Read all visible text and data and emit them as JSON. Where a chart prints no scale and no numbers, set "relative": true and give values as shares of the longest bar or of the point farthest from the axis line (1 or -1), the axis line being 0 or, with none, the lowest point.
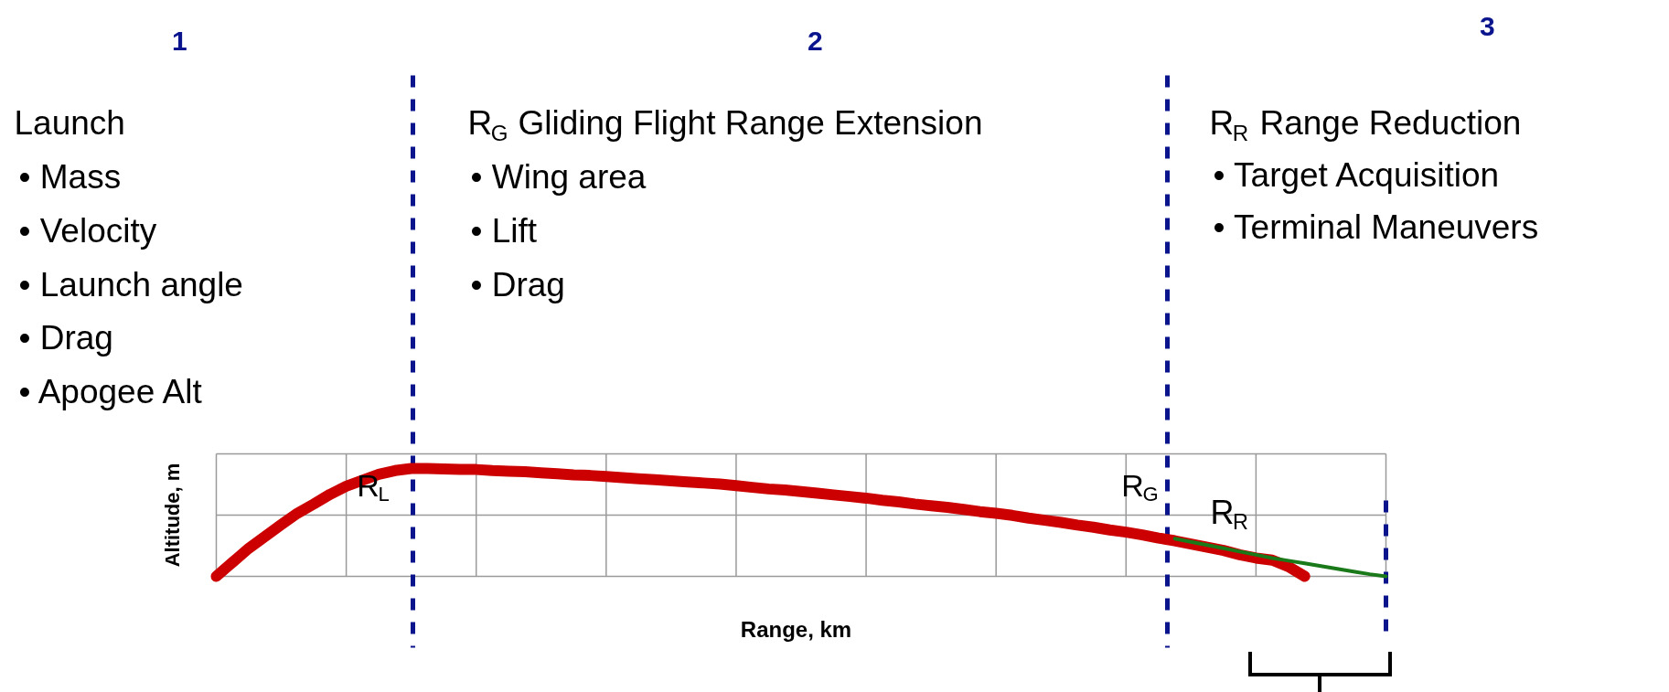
{
  "chart_data": {
    "type": "line",
    "relative": true,
    "xlabel": "Range, km",
    "ylabel": "Altitude, m",
    "categories": [
      null,
      null,
      null,
      null,
      null,
      null,
      null,
      null,
      null,
      null,
      null,
      null,
      null,
      null,
      null,
      null,
      null,
      null,
      null,
      null,
      null,
      null,
      null,
      null,
      null,
      null,
      null,
      null,
      null,
      null,
      null,
      null,
      null,
      null,
      null,
      null,
      null,
      null,
      null,
      null,
      null,
      null,
      null,
      null,
      null,
      null,
      null,
      null,
      null,
      null,
      null,
      null,
      null,
      null,
      null,
      null,
      null,
      null,
      null,
      null,
      null,
      null,
      null,
      null,
      null,
      null,
      null,
      null,
      null,
      null,
      null,
      null,
      null
    ],
    "grid": true,
    "line_style": "solid",
    "series": [
      {
        "color": "#cc0000",
        "values": [
          0,
          0.13,
          0.26,
          0.37,
          0.48,
          0.585,
          0.67,
          0.76,
          0.835,
          0.89,
          0.945,
          0.98,
          1.0,
          1.0,
          0.995,
          0.99,
          0.99,
          0.98,
          0.975,
          0.97,
          0.96,
          0.95,
          0.94,
          0.935,
          0.925,
          0.915,
          0.905,
          0.895,
          0.885,
          0.875,
          0.865,
          0.855,
          0.84,
          0.825,
          0.81,
          0.8,
          0.785,
          0.77,
          0.755,
          0.74,
          0.725,
          0.705,
          0.69,
          0.67,
          0.655,
          0.64,
          0.62,
          0.6,
          0.585,
          0.565,
          0.54,
          0.52,
          0.5,
          0.475,
          0.455,
          0.43,
          0.41,
          0.385,
          0.355,
          0.33,
          0.3,
          0.27,
          0.24,
          0.2,
          0.17,
          0.15,
          0.09,
          0,
          null,
          null,
          null,
          null,
          null
        ]
      },
      {
        "color": "#1a7a1a",
        "values": [
          null,
          null,
          null,
          null,
          null,
          null,
          null,
          null,
          null,
          null,
          null,
          null,
          null,
          null,
          null,
          null,
          null,
          null,
          null,
          null,
          null,
          null,
          null,
          null,
          null,
          null,
          null,
          null,
          null,
          null,
          null,
          null,
          null,
          null,
          null,
          null,
          null,
          null,
          null,
          null,
          null,
          null,
          null,
          null,
          null,
          null,
          null,
          null,
          null,
          null,
          null,
          null,
          null,
          null,
          null,
          null,
          null,
          null,
          null,
          0.35,
          0.32,
          0.29,
          0.26,
          0.23,
          0.2,
          0.17,
          0.145,
          0.12,
          0.095,
          0.07,
          0.045,
          0.02,
          0
        ]
      }
    ],
    "annotations": [
      "1",
      "2",
      "3",
      "Launch",
      "• Mass",
      "• Velocity",
      "• Launch angle",
      "• Drag",
      "• Apogee Alt",
      "R$_{G}$ Gliding Flight Range Extension",
      "• Wing area",
      "• Lift",
      "• Drag",
      "R$_{R}$ Range Reduction",
      "• Target Acquisition",
      "• Terminal Maneuvers",
      "R$_{L}$",
      "R$_{G}$",
      "R$_{R}$"
    ]
  }
}
